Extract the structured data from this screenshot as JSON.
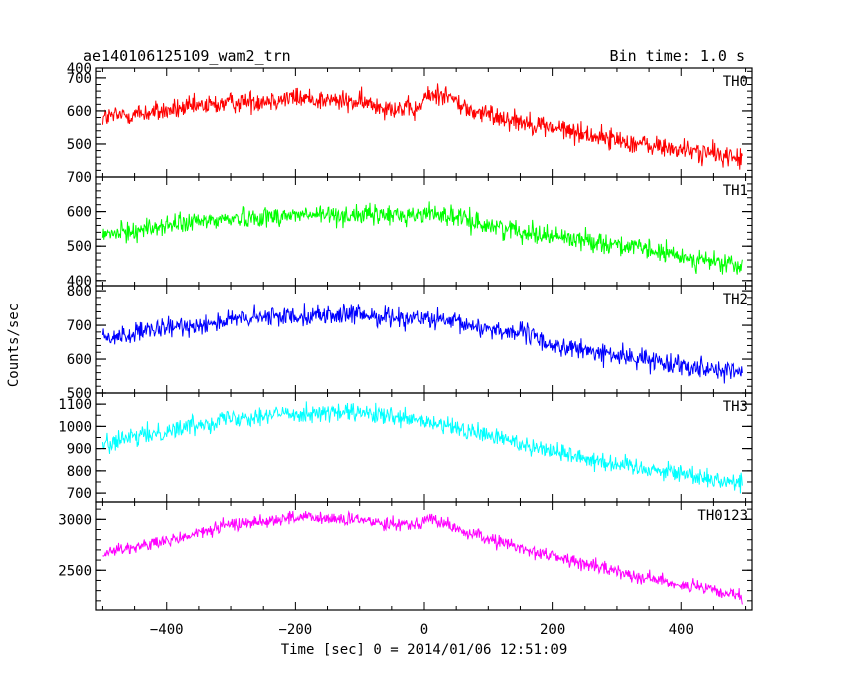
{
  "chart_data": {
    "type": "line",
    "title_left": "ae140106125109_wam2_trn",
    "title_right": "Bin time: 1.0 s",
    "xlabel": "Time [sec] 0 = 2014/01/06 12:51:09",
    "ylabel": "Counts/sec",
    "xlim": [
      -510,
      510
    ],
    "x_ticks": [
      -400,
      -200,
      0,
      200,
      400
    ],
    "x_tick_labels": [
      "−400",
      "−200",
      "0",
      "200",
      "400"
    ],
    "grid": false,
    "panels": [
      {
        "name": "TH0",
        "color": "#ff0000",
        "ylim": [
          400,
          730
        ],
        "y_ticks": [
          500,
          600,
          700
        ],
        "y_top_label": "400",
        "keypoints": [
          [
            -500,
            580
          ],
          [
            -400,
            600
          ],
          [
            -300,
            625
          ],
          [
            -200,
            640
          ],
          [
            -100,
            625
          ],
          [
            -10,
            600
          ],
          [
            0,
            640
          ],
          [
            30,
            655
          ],
          [
            70,
            600
          ],
          [
            150,
            570
          ],
          [
            250,
            530
          ],
          [
            350,
            495
          ],
          [
            450,
            470
          ],
          [
            495,
            455
          ]
        ],
        "noise": 42
      },
      {
        "name": "TH1",
        "color": "#00ff00",
        "ylim": [
          385,
          700
        ],
        "y_ticks": [
          400,
          500,
          600
        ],
        "y_top_label": "700",
        "keypoints": [
          [
            -500,
            530
          ],
          [
            -400,
            560
          ],
          [
            -300,
            580
          ],
          [
            -200,
            590
          ],
          [
            -100,
            590
          ],
          [
            0,
            590
          ],
          [
            10,
            600
          ],
          [
            100,
            560
          ],
          [
            200,
            530
          ],
          [
            300,
            505
          ],
          [
            400,
            470
          ],
          [
            495,
            440
          ]
        ],
        "noise": 38
      },
      {
        "name": "TH2",
        "color": "#0000ff",
        "ylim": [
          500,
          815
        ],
        "y_ticks": [
          500,
          600,
          700,
          800
        ],
        "keypoints": [
          [
            -500,
            660
          ],
          [
            -400,
            690
          ],
          [
            -300,
            715
          ],
          [
            -200,
            730
          ],
          [
            -100,
            730
          ],
          [
            0,
            720
          ],
          [
            100,
            690
          ],
          [
            160,
            675
          ],
          [
            200,
            640
          ],
          [
            300,
            610
          ],
          [
            400,
            585
          ],
          [
            495,
            560
          ]
        ],
        "noise": 38
      },
      {
        "name": "TH3",
        "color": "#00ffff",
        "ylim": [
          660,
          1150
        ],
        "y_ticks": [
          700,
          800,
          900,
          1000,
          1100
        ],
        "keypoints": [
          [
            -500,
            920
          ],
          [
            -400,
            980
          ],
          [
            -300,
            1040
          ],
          [
            -200,
            1060
          ],
          [
            -100,
            1060
          ],
          [
            0,
            1020
          ],
          [
            100,
            960
          ],
          [
            200,
            890
          ],
          [
            300,
            830
          ],
          [
            400,
            790
          ],
          [
            495,
            740
          ]
        ],
        "noise": 55
      },
      {
        "name": "TH0123",
        "color": "#ff00ff",
        "ylim": [
          2110,
          3170
        ],
        "y_ticks": [
          2500,
          3000
        ],
        "keypoints": [
          [
            -500,
            2680
          ],
          [
            -400,
            2780
          ],
          [
            -300,
            2950
          ],
          [
            -200,
            3020
          ],
          [
            -100,
            2990
          ],
          [
            -20,
            2950
          ],
          [
            10,
            3010
          ],
          [
            60,
            2880
          ],
          [
            150,
            2720
          ],
          [
            250,
            2560
          ],
          [
            350,
            2420
          ],
          [
            450,
            2300
          ],
          [
            495,
            2230
          ]
        ],
        "noise": 85
      }
    ]
  }
}
